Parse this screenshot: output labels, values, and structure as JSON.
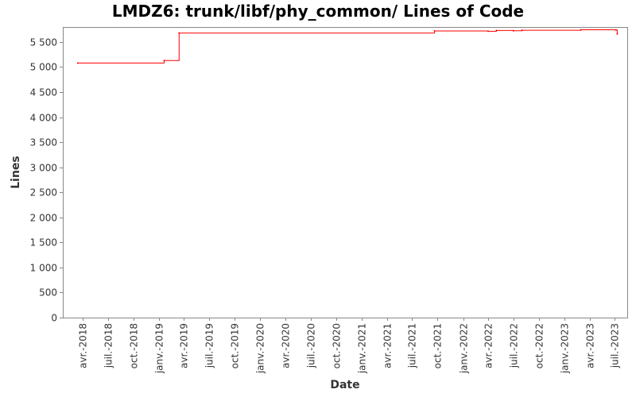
{
  "chart_data": {
    "type": "line",
    "title": "LMDZ6: trunk/libf/phy_common/ Lines of Code",
    "xlabel": "Date",
    "ylabel": "Lines",
    "ylim": [
      0,
      5800
    ],
    "xlim": [
      "2018-01-20",
      "2023-08-15"
    ],
    "y_ticks": [
      {
        "value": 0,
        "label": "0"
      },
      {
        "value": 500,
        "label": "500"
      },
      {
        "value": 1000,
        "label": "1 000"
      },
      {
        "value": 1500,
        "label": "1 500"
      },
      {
        "value": 2000,
        "label": "2 000"
      },
      {
        "value": 2500,
        "label": "2 500"
      },
      {
        "value": 3000,
        "label": "3 000"
      },
      {
        "value": 3500,
        "label": "3 500"
      },
      {
        "value": 4000,
        "label": "4 000"
      },
      {
        "value": 4500,
        "label": "4 500"
      },
      {
        "value": 5000,
        "label": "5 000"
      },
      {
        "value": 5500,
        "label": "5 500"
      }
    ],
    "x_ticks": [
      {
        "value": "2018-04-01",
        "label": "avr.-2018"
      },
      {
        "value": "2018-07-01",
        "label": "juil.-2018"
      },
      {
        "value": "2018-10-01",
        "label": "oct.-2018"
      },
      {
        "value": "2019-01-01",
        "label": "janv.-2019"
      },
      {
        "value": "2019-04-01",
        "label": "avr.-2019"
      },
      {
        "value": "2019-07-01",
        "label": "juil.-2019"
      },
      {
        "value": "2019-10-01",
        "label": "oct.-2019"
      },
      {
        "value": "2020-01-01",
        "label": "janv.-2020"
      },
      {
        "value": "2020-04-01",
        "label": "avr.-2020"
      },
      {
        "value": "2020-07-01",
        "label": "juil.-2020"
      },
      {
        "value": "2020-10-01",
        "label": "oct.-2020"
      },
      {
        "value": "2021-01-01",
        "label": "janv.-2021"
      },
      {
        "value": "2021-04-01",
        "label": "avr.-2021"
      },
      {
        "value": "2021-07-01",
        "label": "juil.-2021"
      },
      {
        "value": "2021-10-01",
        "label": "oct.-2021"
      },
      {
        "value": "2022-01-01",
        "label": "janv.-2022"
      },
      {
        "value": "2022-04-01",
        "label": "avr.-2022"
      },
      {
        "value": "2022-07-01",
        "label": "juil.-2022"
      },
      {
        "value": "2022-10-01",
        "label": "oct.-2022"
      },
      {
        "value": "2023-01-01",
        "label": "janv.-2023"
      },
      {
        "value": "2023-04-01",
        "label": "avr.-2023"
      },
      {
        "value": "2023-07-01",
        "label": "juil.-2023"
      }
    ],
    "grid": false,
    "series": [
      {
        "color": "#ff0000",
        "step": true,
        "points": [
          {
            "x": "2018-03-15",
            "y": 5080
          },
          {
            "x": "2019-01-20",
            "y": 5130
          },
          {
            "x": "2019-03-15",
            "y": 5680
          },
          {
            "x": "2021-09-20",
            "y": 5720
          },
          {
            "x": "2022-04-01",
            "y": 5715
          },
          {
            "x": "2022-05-01",
            "y": 5730
          },
          {
            "x": "2022-07-01",
            "y": 5725
          },
          {
            "x": "2022-08-01",
            "y": 5735
          },
          {
            "x": "2023-03-01",
            "y": 5745
          },
          {
            "x": "2023-07-05",
            "y": 5740
          },
          {
            "x": "2023-07-10",
            "y": 5660
          }
        ]
      }
    ]
  }
}
